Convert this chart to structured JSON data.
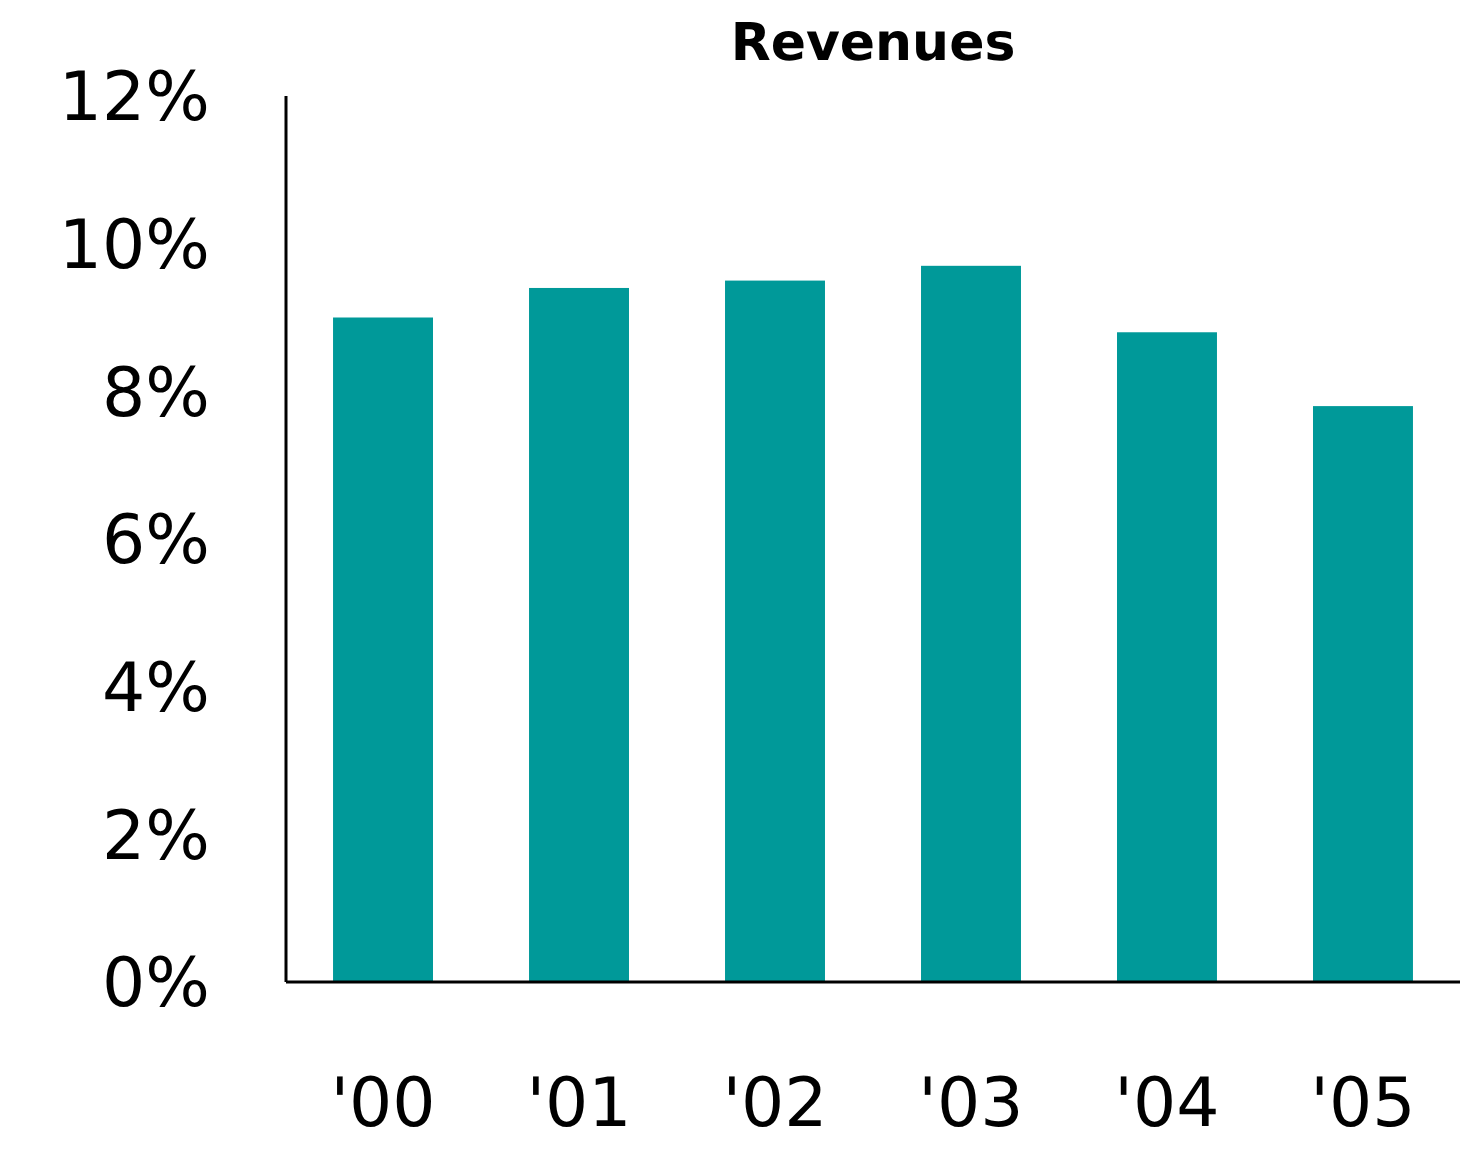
{
  "chart_data": {
    "type": "bar",
    "title": "Revenues",
    "categories": [
      "'00",
      "'01",
      "'02",
      "'03",
      "'04",
      "'05"
    ],
    "values": [
      9.0,
      9.4,
      9.5,
      9.7,
      8.8,
      7.8
    ],
    "color": "#009999",
    "ylim": [
      0,
      12
    ],
    "yticks": [
      {
        "value": 0,
        "label": "0%"
      },
      {
        "value": 2,
        "label": "2%"
      },
      {
        "value": 4,
        "label": "4%"
      },
      {
        "value": 6,
        "label": "6%"
      },
      {
        "value": 8,
        "label": "8%"
      },
      {
        "value": 10,
        "label": "10%"
      },
      {
        "value": 12,
        "label": "12%"
      }
    ],
    "grid": false
  }
}
